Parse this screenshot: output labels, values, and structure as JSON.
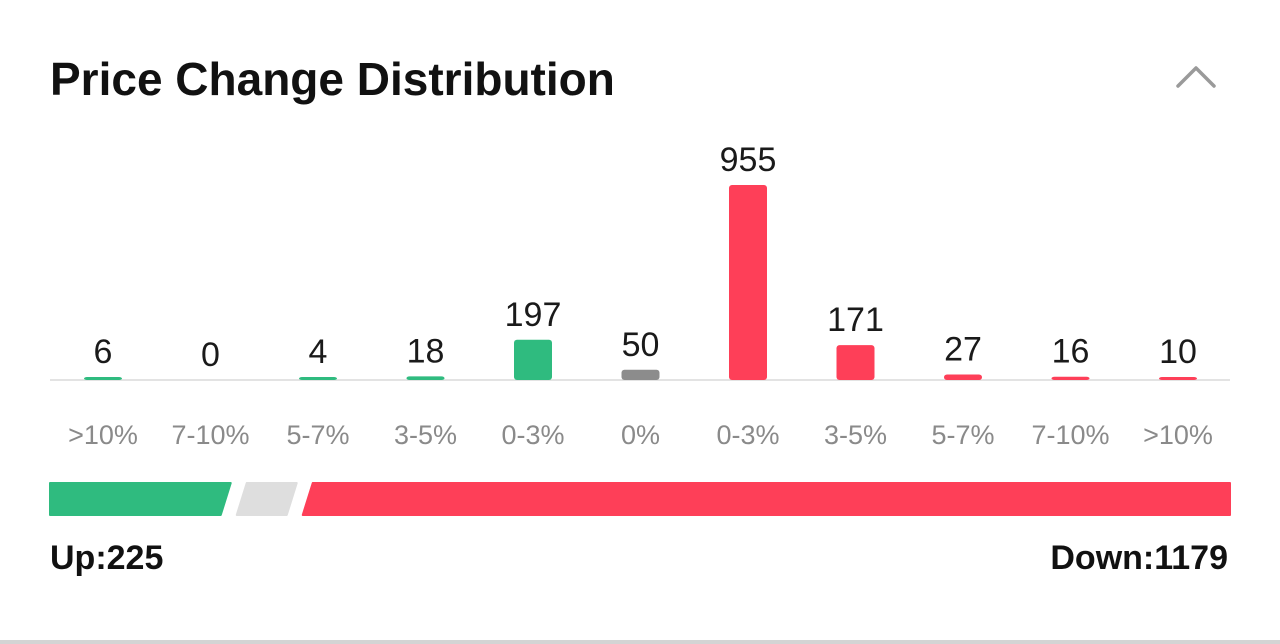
{
  "header": {
    "title": "Price Change Distribution",
    "collapse_icon": "chevron-up-icon"
  },
  "colors": {
    "up": "#2fbb7f",
    "flat": "#8c8c8c",
    "down": "#fe3f58",
    "ratio_flat": "#dedede"
  },
  "chart_data": {
    "type": "bar",
    "title": "Price Change Distribution",
    "categories": [
      ">10%",
      "7-10%",
      "5-7%",
      "3-5%",
      "0-3%",
      "0%",
      "0-3%",
      "3-5%",
      "5-7%",
      "7-10%",
      ">10%"
    ],
    "values": [
      6,
      0,
      4,
      18,
      197,
      50,
      955,
      171,
      27,
      16,
      10
    ],
    "direction": [
      "up",
      "up",
      "up",
      "up",
      "up",
      "flat",
      "down",
      "down",
      "down",
      "down",
      "down"
    ],
    "data_labels": [
      "6",
      "0",
      "4",
      "18",
      "197",
      "50",
      "955",
      "171",
      "27",
      "16",
      "10"
    ],
    "ylim": [
      0,
      955
    ],
    "grid": false,
    "legend": "none"
  },
  "summary": {
    "up_label": "Up:225",
    "down_label": "Down:1179",
    "up_count": 225,
    "flat_count": 50,
    "down_count": 1179
  }
}
